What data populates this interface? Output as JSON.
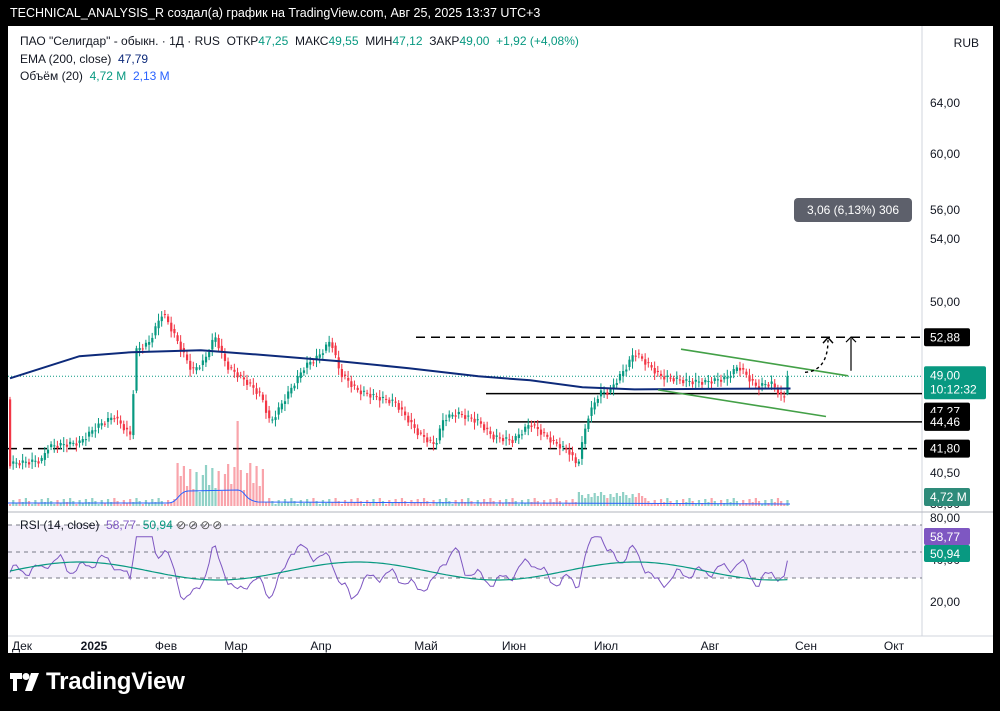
{
  "header": {
    "caption": "TECHNICAL_ANALYSIS_R создал(а) график на TradingView.com, Авг 25, 2025 13:37 UTC+3"
  },
  "symbol": {
    "title": "ПАО \"Селигдар\" - обыкн. · 1Д · RUS",
    "open_label": "ОТКР",
    "open": "47,25",
    "high_label": "МАКС",
    "high": "49,55",
    "low_label": "МИН",
    "low": "47,12",
    "close_label": "ЗАКР",
    "close": "49,00",
    "change": "+1,92 (+4,08%)"
  },
  "ema": {
    "label": "EMA (200, close)",
    "value": "47,79"
  },
  "volume": {
    "label": "Объём (20)",
    "value1": "4,72 M",
    "value2": "2,13 M"
  },
  "rsi": {
    "label": "RSI (14, close)",
    "value1": "58,77",
    "value2": "50,94"
  },
  "currency": "RUB",
  "brand": "TradingView",
  "colors": {
    "up": "#089981",
    "down": "#f23645",
    "ema": "#0d2a7a",
    "channel": "#43a047",
    "rsi": "#7e57c2",
    "rsi_ma": "#089981",
    "volume": "#2962ff"
  },
  "chart_data": {
    "type": "candlestick",
    "x_months": [
      "Дек",
      "2025",
      "Фев",
      "Мар",
      "Апр",
      "Май",
      "Июн",
      "Июл",
      "Авг",
      "Сен",
      "Окт"
    ],
    "y_ticks": [
      "64,00",
      "60,00",
      "56,00",
      "54,00",
      "50,00",
      "40,50",
      "38,90"
    ],
    "price_labels": [
      "52,88",
      "49,00",
      "47,79",
      "47,27",
      "44,46",
      "41,80",
      "4,72 M"
    ],
    "countdown": "10:12:32",
    "measure_label": "3,06 (6,13%) 306",
    "rsi_ticks": [
      "80,00",
      "40,00",
      "20,00"
    ],
    "levels": [
      52.88,
      47.27,
      44.46,
      41.8
    ],
    "last": {
      "open": 47.25,
      "high": 49.55,
      "low": 47.12,
      "close": 49.0,
      "ema200": 47.79
    }
  }
}
